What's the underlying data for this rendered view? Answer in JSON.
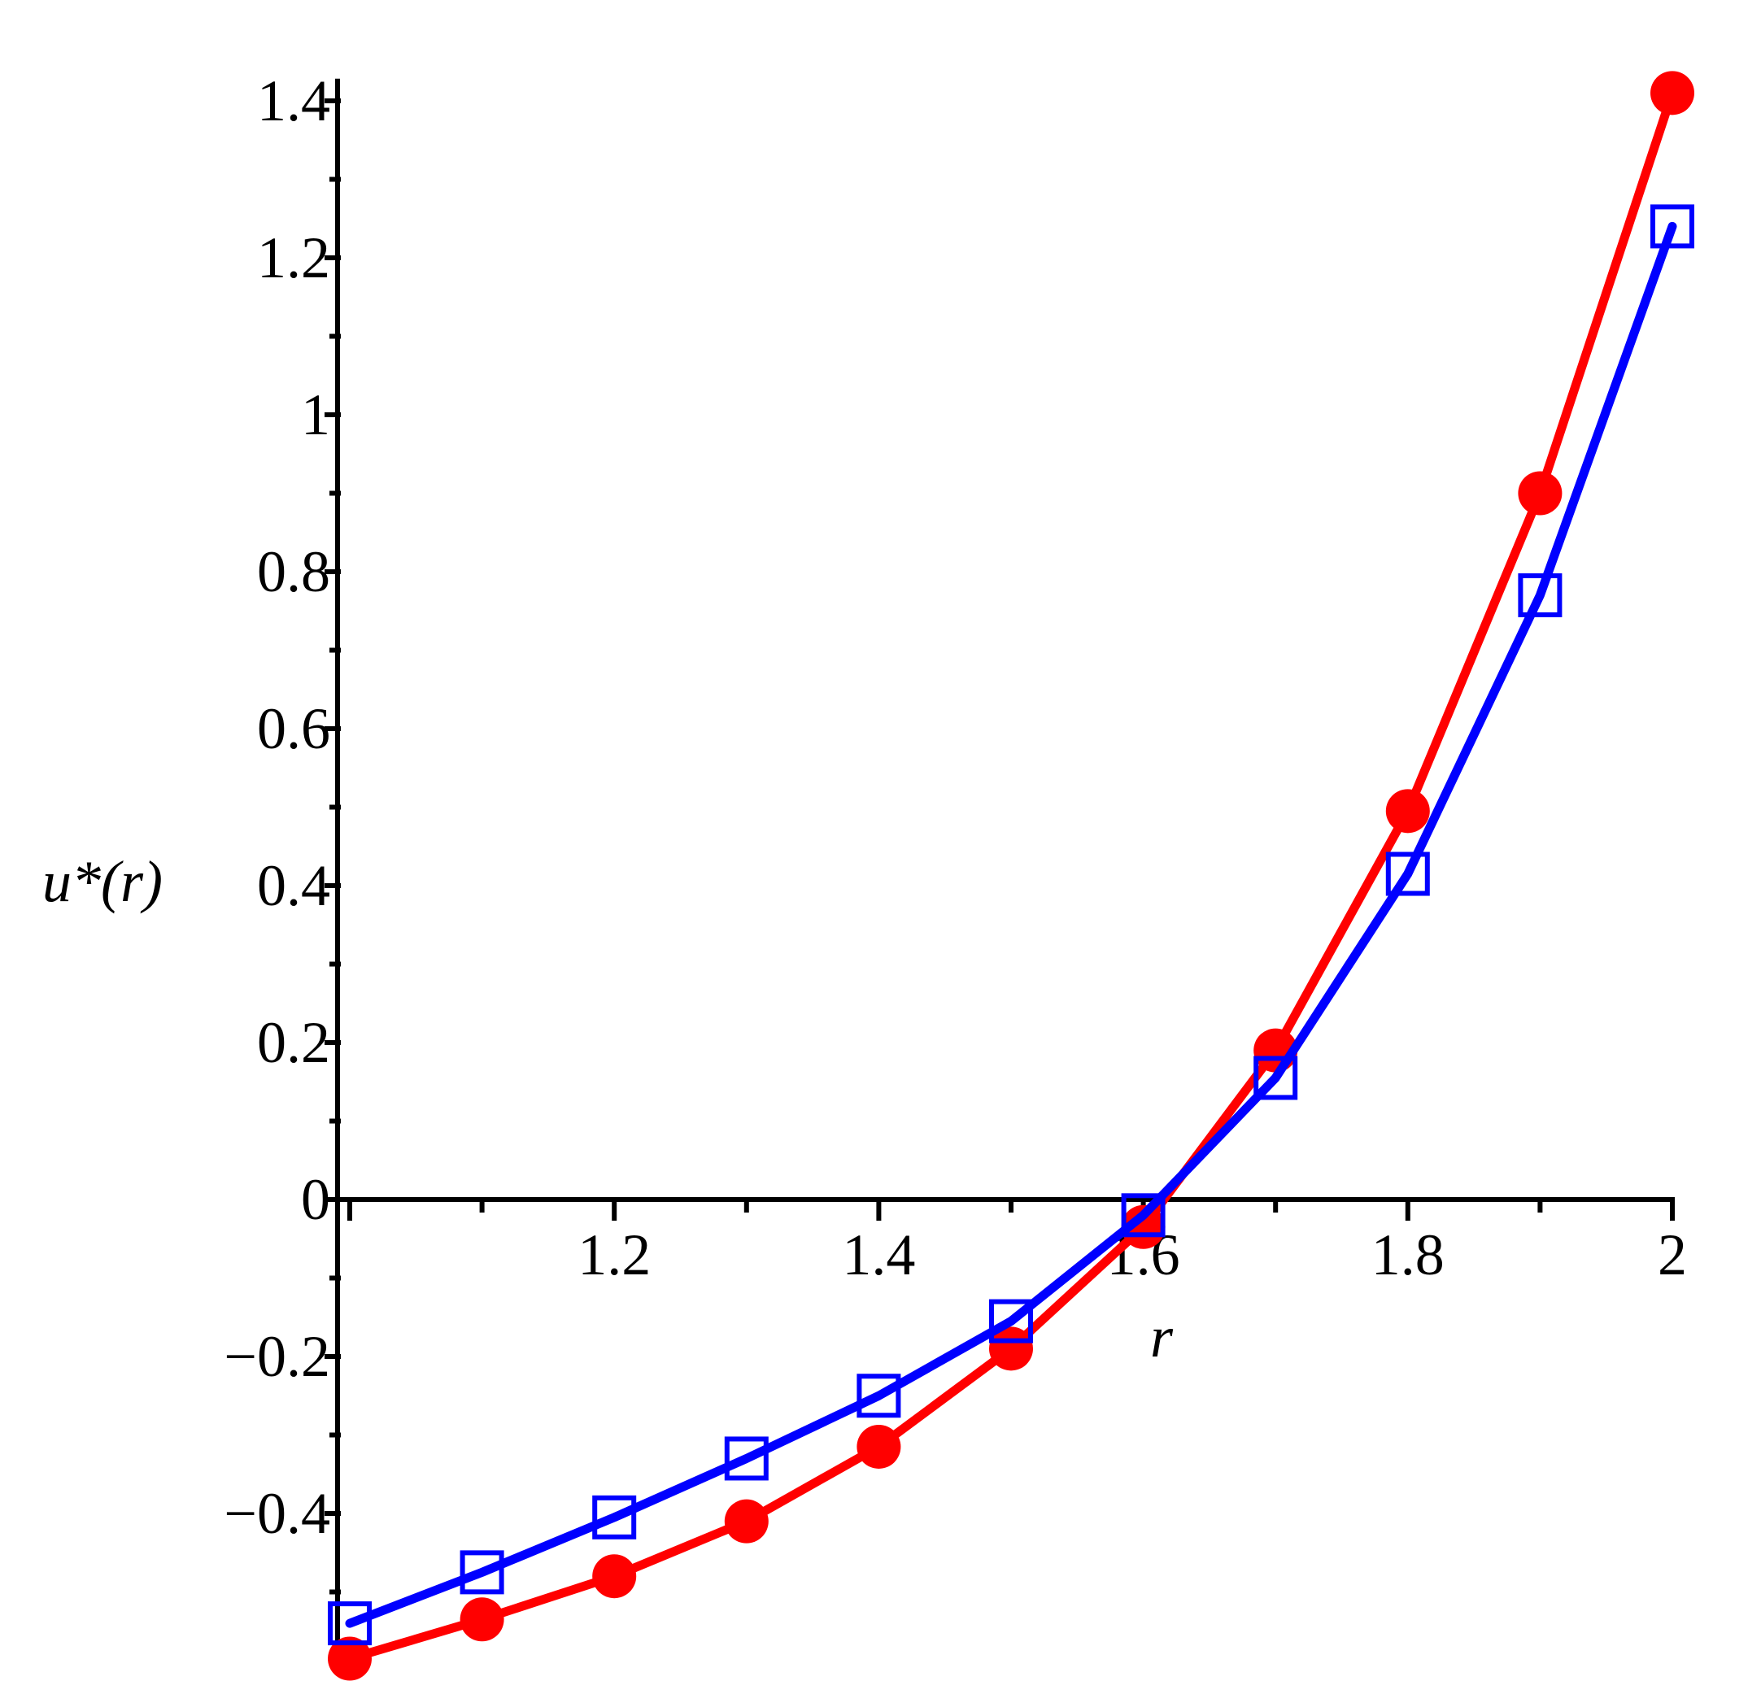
{
  "chart_data": {
    "type": "line",
    "title": "",
    "xlabel": "r",
    "ylabel": "u*(r)",
    "xlim": [
      1.0,
      2.0
    ],
    "ylim": [
      -0.58,
      1.42
    ],
    "x_ticks": [
      1.2,
      1.4,
      1.6,
      1.8,
      2.0
    ],
    "x_tick_labels": [
      "1.2",
      "1.4",
      "1.6",
      "1.8",
      "2"
    ],
    "y_ticks": [
      -0.4,
      -0.2,
      0,
      0.2,
      0.4,
      0.6,
      0.8,
      1.0,
      1.2,
      1.4
    ],
    "y_tick_labels": [
      "-0.4",
      "-0.2",
      "0",
      "0.2",
      "0.4",
      "0.6",
      "0.8",
      "1",
      "1.2",
      "1.4"
    ],
    "grid": false,
    "legend": "none",
    "x": [
      1.0,
      1.1,
      1.2,
      1.3,
      1.4,
      1.5,
      1.6,
      1.7,
      1.8,
      1.9,
      2.0
    ],
    "series": [
      {
        "color": "#ff0000",
        "marker": "filled-circle-icon",
        "values": [
          -0.585,
          -0.535,
          -0.48,
          -0.41,
          -0.315,
          -0.19,
          -0.035,
          0.19,
          0.495,
          0.9,
          1.41
        ]
      },
      {
        "color": "#0000ff",
        "marker": "open-square-icon",
        "values": [
          -0.54,
          -0.475,
          -0.405,
          -0.33,
          -0.25,
          -0.155,
          -0.02,
          0.155,
          0.415,
          0.77,
          1.24
        ]
      }
    ]
  }
}
